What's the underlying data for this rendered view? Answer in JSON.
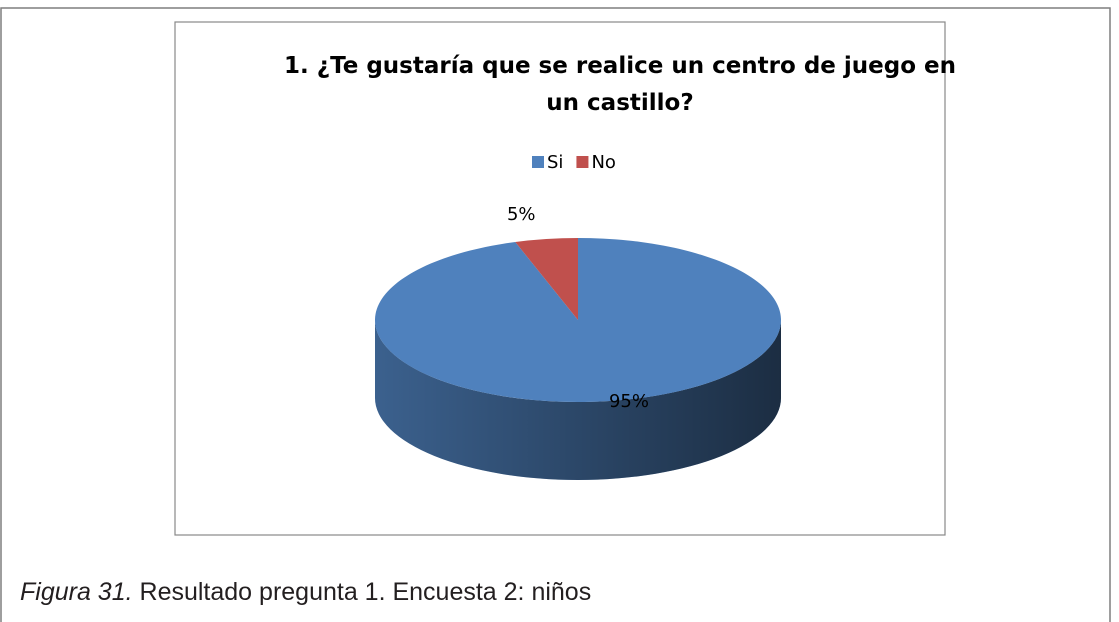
{
  "chart_data": {
    "type": "pie",
    "title": "1. ¿Te gustaría que se realice un centro de juego en un  castillo?",
    "categories": [
      "Si",
      "No"
    ],
    "values": [
      95,
      5
    ],
    "value_labels": [
      "95%",
      "5%"
    ],
    "colors": [
      "#4f81bd",
      "#c0504d"
    ],
    "legend": "top"
  },
  "caption": {
    "label": "Figura 31.",
    "text": "Resultado pregunta 1. Encuesta 2: niños"
  }
}
